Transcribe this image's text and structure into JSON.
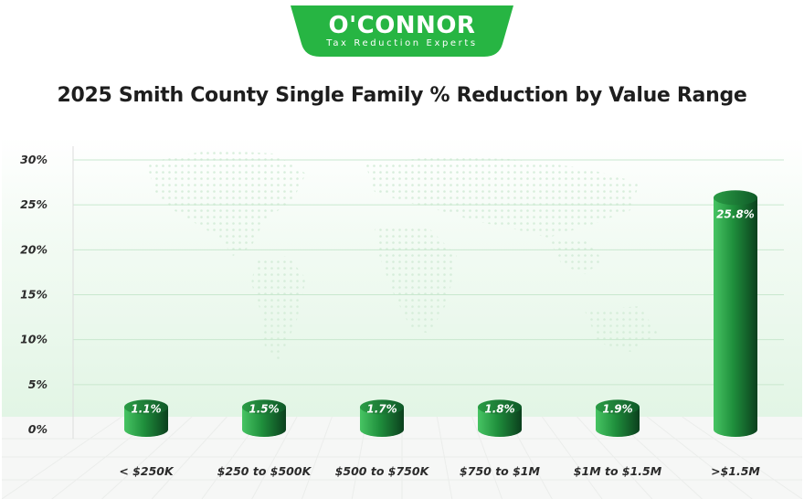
{
  "logo": {
    "brand": "O'CONNOR",
    "tagline": "Tax Reduction Experts"
  },
  "colors": {
    "brand_green": "#27b543",
    "bar_light": "#3cb957",
    "bar_dark": "#0d4a22",
    "background_tint": "#eaf7ec"
  },
  "chart_data": {
    "type": "bar",
    "title": "2025 Smith County Single Family % Reduction by Value Range",
    "categories": [
      "< $250K",
      "$250 to $500K",
      "$500 to $750K",
      "$750 to $1M",
      "$1M to $1.5M",
      ">$1.5M"
    ],
    "values": [
      1.1,
      1.5,
      1.7,
      1.8,
      1.9,
      25.8
    ],
    "value_labels": [
      "1.1%",
      "1.5%",
      "1.7%",
      "1.8%",
      "1.9%",
      "25.8%"
    ],
    "yticks": [
      "0%",
      "5%",
      "10%",
      "15%",
      "20%",
      "25%",
      "30%"
    ],
    "ylim": [
      0,
      30
    ],
    "xlabel": "",
    "ylabel": "",
    "grid": true,
    "legend": "none"
  }
}
